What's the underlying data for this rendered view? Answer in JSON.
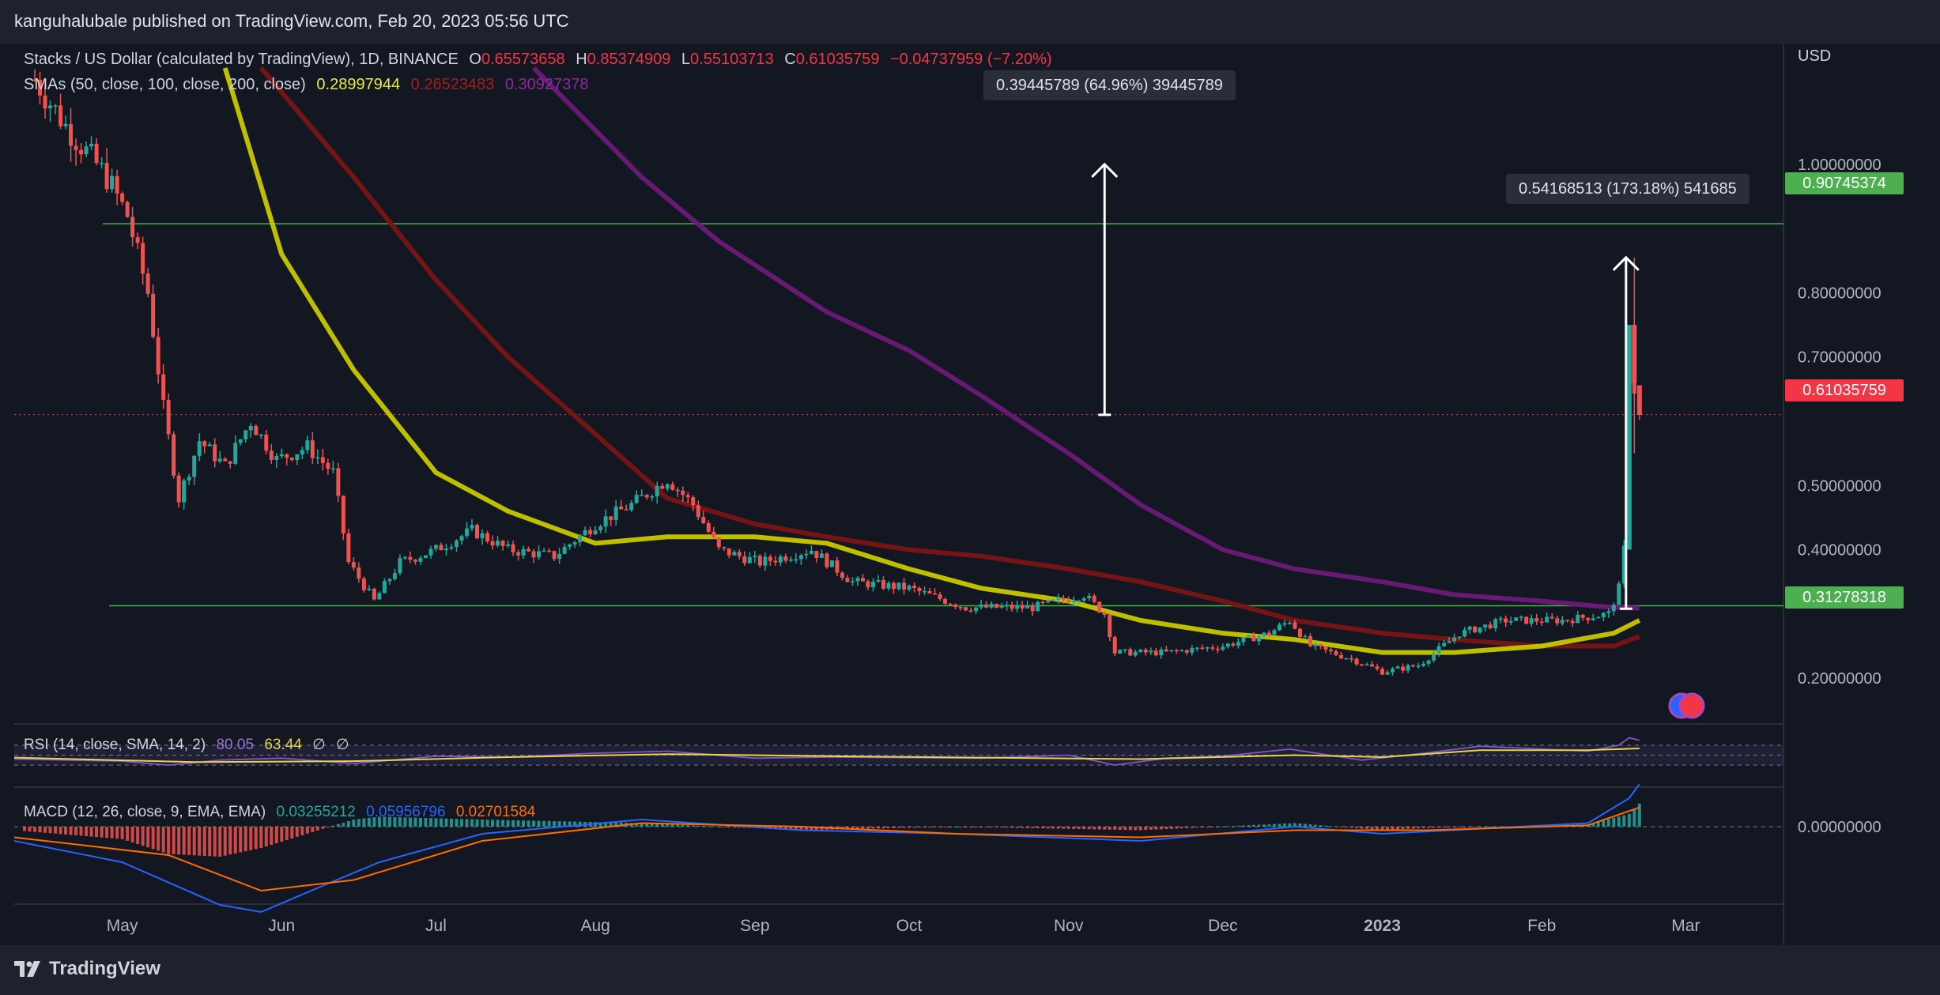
{
  "header": {
    "published": "kanguhalubale published on TradingView.com, Feb 20, 2023 05:56 UTC"
  },
  "footer": {
    "brand": "TradingView"
  },
  "legend": {
    "title": "Stacks / US Dollar (calculated by TradingView), 1D, BINANCE",
    "o_label": "O",
    "o": "0.65573658",
    "h_label": "H",
    "h": "0.85374909",
    "l_label": "L",
    "l": "0.55103713",
    "c_label": "C",
    "c": "0.61035759",
    "change": "−0.04737959 (−7.20%)",
    "sma_label": "SMAs (50, close, 100, close, 200, close)",
    "sma50": "0.28997944",
    "sma100": "0.26523483",
    "sma200": "0.30927378",
    "rsi_label": "RSI (14, close, SMA, 14, 2)",
    "rsi": "80.05",
    "rsi_sma": "63.44",
    "rsi_na1": "∅",
    "rsi_na2": "∅",
    "macd_label": "MACD (12, 26, close, 9, EMA, EMA)",
    "macd_hist": "0.03255212",
    "macd": "0.05956796",
    "macd_signal": "0.02701584"
  },
  "price_axis": {
    "currency": "USD",
    "ticks": [
      "1.00000000",
      "0.80000000",
      "0.70000000",
      "0.50000000",
      "0.40000000",
      "0.20000000"
    ],
    "macd_tick": "0.00000000"
  },
  "time_axis": {
    "ticks": [
      "May",
      "Jun",
      "Jul",
      "Aug",
      "Sep",
      "Oct",
      "Nov",
      "Dec",
      "2023",
      "Feb",
      "Mar"
    ]
  },
  "price_tags": {
    "resistance": "0.90745374",
    "last": "0.61035759",
    "support": "0.31278318"
  },
  "callouts": {
    "target": "0.39445789 (64.96%) 39445789",
    "rally": "0.54168513 (173.18%) 541685"
  },
  "colors": {
    "bg": "#131722",
    "up": "#26a69a",
    "down": "#ef5350",
    "sma50": "#c8c800",
    "sma100": "#7a1414",
    "sma200": "#6a1a78",
    "rsi": "#7e57c2",
    "rsi_sma": "#e8d44d",
    "macd": "#2962ff",
    "signal": "#ff6d00",
    "level": "#4caf50",
    "tag_green": "#4caf50",
    "tag_red": "#f23645"
  },
  "chart_data": {
    "type": "candlestick",
    "title": "Stacks / US Dollar (calculated by TradingView), 1D, BINANCE",
    "ylim": [
      0.13,
      1.15
    ],
    "x_range": [
      "2022-04-10",
      "2023-03-20"
    ],
    "levels": {
      "resistance": 0.90745374,
      "support": 0.31278318,
      "last": 0.61035759
    },
    "measure_target": {
      "x": "2022-11-08",
      "from": 0.61,
      "to": 1.0
    },
    "measure_rally": {
      "x": "2023-02-18",
      "from": 0.313,
      "to": 0.855
    },
    "price_path": [
      [
        "2022-04-10",
        1.18
      ],
      [
        "2022-04-20",
        1.06
      ],
      [
        "2022-04-28",
        0.98
      ],
      [
        "2022-05-02",
        0.92
      ],
      [
        "2022-05-06",
        0.8
      ],
      [
        "2022-05-09",
        0.62
      ],
      [
        "2022-05-12",
        0.48
      ],
      [
        "2022-05-16",
        0.57
      ],
      [
        "2022-05-21",
        0.53
      ],
      [
        "2022-05-26",
        0.6
      ],
      [
        "2022-05-31",
        0.54
      ],
      [
        "2022-06-06",
        0.56
      ],
      [
        "2022-06-11",
        0.52
      ],
      [
        "2022-06-14",
        0.38
      ],
      [
        "2022-06-19",
        0.32
      ],
      [
        "2022-06-24",
        0.38
      ],
      [
        "2022-07-01",
        0.4
      ],
      [
        "2022-07-08",
        0.43
      ],
      [
        "2022-07-15",
        0.4
      ],
      [
        "2022-07-24",
        0.39
      ],
      [
        "2022-08-01",
        0.44
      ],
      [
        "2022-08-08",
        0.47
      ],
      [
        "2022-08-15",
        0.51
      ],
      [
        "2022-08-20",
        0.47
      ],
      [
        "2022-08-25",
        0.4
      ],
      [
        "2022-09-02",
        0.38
      ],
      [
        "2022-09-12",
        0.4
      ],
      [
        "2022-09-20",
        0.35
      ],
      [
        "2022-10-01",
        0.34
      ],
      [
        "2022-10-12",
        0.31
      ],
      [
        "2022-10-25",
        0.31
      ],
      [
        "2022-11-04",
        0.33
      ],
      [
        "2022-11-08",
        0.3
      ],
      [
        "2022-11-10",
        0.24
      ],
      [
        "2022-11-20",
        0.24
      ],
      [
        "2022-12-01",
        0.25
      ],
      [
        "2022-12-10",
        0.27
      ],
      [
        "2022-12-14",
        0.29
      ],
      [
        "2022-12-18",
        0.25
      ],
      [
        "2022-12-26",
        0.23
      ],
      [
        "2023-01-01",
        0.21
      ],
      [
        "2023-01-08",
        0.22
      ],
      [
        "2023-01-16",
        0.27
      ],
      [
        "2023-01-25",
        0.29
      ],
      [
        "2023-02-05",
        0.29
      ],
      [
        "2023-02-14",
        0.3
      ],
      [
        "2023-02-16",
        0.34
      ],
      [
        "2023-02-17",
        0.4
      ],
      [
        "2023-02-18",
        0.75
      ],
      [
        "2023-02-19",
        0.65
      ],
      [
        "2023-02-20",
        0.61
      ]
    ],
    "sma50_path": [
      [
        "2022-05-21",
        1.15
      ],
      [
        "2022-06-01",
        0.86
      ],
      [
        "2022-06-15",
        0.68
      ],
      [
        "2022-07-01",
        0.52
      ],
      [
        "2022-07-15",
        0.46
      ],
      [
        "2022-08-01",
        0.41
      ],
      [
        "2022-08-15",
        0.42
      ],
      [
        "2022-09-01",
        0.42
      ],
      [
        "2022-09-15",
        0.41
      ],
      [
        "2022-10-01",
        0.37
      ],
      [
        "2022-10-15",
        0.34
      ],
      [
        "2022-11-01",
        0.32
      ],
      [
        "2022-11-15",
        0.29
      ],
      [
        "2022-12-01",
        0.27
      ],
      [
        "2022-12-15",
        0.26
      ],
      [
        "2023-01-01",
        0.24
      ],
      [
        "2023-01-15",
        0.24
      ],
      [
        "2023-02-01",
        0.25
      ],
      [
        "2023-02-15",
        0.27
      ],
      [
        "2023-02-20",
        0.29
      ]
    ],
    "sma100_path": [
      [
        "2022-05-28",
        1.15
      ],
      [
        "2022-06-15",
        0.98
      ],
      [
        "2022-07-01",
        0.82
      ],
      [
        "2022-07-15",
        0.7
      ],
      [
        "2022-08-01",
        0.58
      ],
      [
        "2022-08-15",
        0.48
      ],
      [
        "2022-09-01",
        0.44
      ],
      [
        "2022-09-15",
        0.42
      ],
      [
        "2022-10-01",
        0.4
      ],
      [
        "2022-10-15",
        0.39
      ],
      [
        "2022-11-01",
        0.37
      ],
      [
        "2022-11-15",
        0.35
      ],
      [
        "2022-12-01",
        0.32
      ],
      [
        "2022-12-15",
        0.29
      ],
      [
        "2023-01-01",
        0.27
      ],
      [
        "2023-01-15",
        0.26
      ],
      [
        "2023-02-01",
        0.25
      ],
      [
        "2023-02-15",
        0.25
      ],
      [
        "2023-02-20",
        0.265
      ]
    ],
    "sma200_path": [
      [
        "2022-07-20",
        1.15
      ],
      [
        "2022-08-10",
        0.98
      ],
      [
        "2022-08-25",
        0.88
      ],
      [
        "2022-09-15",
        0.77
      ],
      [
        "2022-10-01",
        0.71
      ],
      [
        "2022-10-15",
        0.64
      ],
      [
        "2022-11-01",
        0.55
      ],
      [
        "2022-11-15",
        0.47
      ],
      [
        "2022-12-01",
        0.4
      ],
      [
        "2022-12-15",
        0.37
      ],
      [
        "2023-01-01",
        0.35
      ],
      [
        "2023-01-15",
        0.33
      ],
      [
        "2023-02-01",
        0.32
      ],
      [
        "2023-02-15",
        0.31
      ],
      [
        "2023-02-20",
        0.309
      ]
    ],
    "rsi_path": [
      [
        "2022-04-10",
        42
      ],
      [
        "2022-05-01",
        38
      ],
      [
        "2022-05-10",
        30
      ],
      [
        "2022-05-20",
        40
      ],
      [
        "2022-06-01",
        44
      ],
      [
        "2022-06-15",
        33
      ],
      [
        "2022-07-01",
        48
      ],
      [
        "2022-07-15",
        46
      ],
      [
        "2022-08-01",
        54
      ],
      [
        "2022-08-15",
        58
      ],
      [
        "2022-09-01",
        44
      ],
      [
        "2022-09-15",
        46
      ],
      [
        "2022-10-01",
        45
      ],
      [
        "2022-10-15",
        44
      ],
      [
        "2022-11-01",
        50
      ],
      [
        "2022-11-10",
        30
      ],
      [
        "2022-11-20",
        44
      ],
      [
        "2022-12-01",
        48
      ],
      [
        "2022-12-14",
        62
      ],
      [
        "2022-12-28",
        40
      ],
      [
        "2023-01-10",
        55
      ],
      [
        "2023-01-20",
        68
      ],
      [
        "2023-02-01",
        62
      ],
      [
        "2023-02-10",
        58
      ],
      [
        "2023-02-16",
        70
      ],
      [
        "2023-02-18",
        85
      ],
      [
        "2023-02-20",
        80.05
      ]
    ],
    "rsi_sma_path": [
      [
        "2022-04-10",
        45
      ],
      [
        "2022-05-15",
        36
      ],
      [
        "2022-06-15",
        38
      ],
      [
        "2022-07-15",
        46
      ],
      [
        "2022-08-15",
        52
      ],
      [
        "2022-09-15",
        48
      ],
      [
        "2022-10-15",
        45
      ],
      [
        "2022-11-15",
        42
      ],
      [
        "2022-12-15",
        50
      ],
      [
        "2023-01-01",
        46
      ],
      [
        "2023-01-20",
        60
      ],
      [
        "2023-02-10",
        60
      ],
      [
        "2023-02-20",
        63.44
      ]
    ],
    "macd_path": [
      [
        "2022-04-10",
        -0.02
      ],
      [
        "2022-05-01",
        -0.05
      ],
      [
        "2022-05-20",
        -0.11
      ],
      [
        "2022-05-28",
        -0.12
      ],
      [
        "2022-06-10",
        -0.08
      ],
      [
        "2022-06-20",
        -0.05
      ],
      [
        "2022-07-10",
        -0.01
      ],
      [
        "2022-08-10",
        0.01
      ],
      [
        "2022-09-10",
        -0.005
      ],
      [
        "2022-10-10",
        -0.01
      ],
      [
        "2022-11-15",
        -0.02
      ],
      [
        "2022-12-15",
        0.0
      ],
      [
        "2023-01-01",
        -0.01
      ],
      [
        "2023-02-10",
        0.005
      ],
      [
        "2023-02-18",
        0.04
      ],
      [
        "2023-02-20",
        0.0596
      ]
    ],
    "signal_path": [
      [
        "2022-04-10",
        -0.015
      ],
      [
        "2022-05-10",
        -0.04
      ],
      [
        "2022-05-28",
        -0.09
      ],
      [
        "2022-06-15",
        -0.075
      ],
      [
        "2022-07-10",
        -0.02
      ],
      [
        "2022-08-10",
        0.005
      ],
      [
        "2022-09-10",
        0.0
      ],
      [
        "2022-10-10",
        -0.01
      ],
      [
        "2022-11-15",
        -0.015
      ],
      [
        "2022-12-15",
        -0.005
      ],
      [
        "2023-01-10",
        -0.005
      ],
      [
        "2023-02-10",
        0.002
      ],
      [
        "2023-02-20",
        0.027
      ]
    ]
  }
}
